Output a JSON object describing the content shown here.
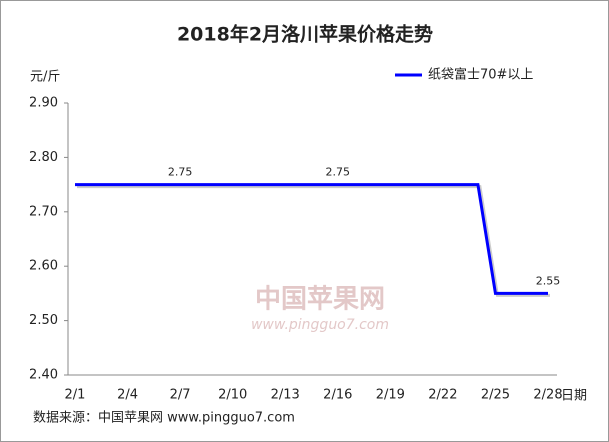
{
  "chart_data": {
    "type": "line",
    "title": "2018年2月洛川苹果价格走势",
    "y_label": "元/斤",
    "x_label": "日期",
    "source": "数据来源：中国苹果网 www.pingguo7.com",
    "watermark": [
      "中国苹果网",
      "www.pingguo7.com"
    ],
    "categories": [
      "2/1",
      null,
      null,
      "2/4",
      null,
      null,
      "2/7",
      null,
      null,
      "2/10",
      null,
      null,
      "2/13",
      null,
      null,
      "2/16",
      null,
      null,
      "2/19",
      null,
      null,
      "2/22",
      null,
      null,
      "2/25",
      null,
      null,
      "2/28"
    ],
    "series": [
      {
        "name": "纸袋富士70#以上",
        "color": "#0000ff",
        "values": [
          2.75,
          2.75,
          2.75,
          2.75,
          2.75,
          2.75,
          2.75,
          2.75,
          2.75,
          2.75,
          2.75,
          2.75,
          2.75,
          2.75,
          2.75,
          2.75,
          2.75,
          2.75,
          2.75,
          2.75,
          2.75,
          2.75,
          2.75,
          2.75,
          2.55,
          2.55,
          2.55,
          2.55
        ],
        "value_labels": [
          null,
          null,
          null,
          null,
          null,
          null,
          "2.75",
          null,
          null,
          null,
          null,
          null,
          null,
          null,
          null,
          "2.75",
          null,
          null,
          null,
          null,
          null,
          null,
          null,
          null,
          null,
          null,
          null,
          "2.55"
        ]
      }
    ],
    "ylim": [
      2.4,
      2.9
    ],
    "yticks": [
      {
        "value": 2.4,
        "label": "2.40"
      },
      {
        "value": 2.5,
        "label": "2.50"
      },
      {
        "value": 2.6,
        "label": "2.60"
      },
      {
        "value": 2.7,
        "label": "2.70"
      },
      {
        "value": 2.8,
        "label": "2.80"
      },
      {
        "value": 2.9,
        "label": "2.90"
      }
    ],
    "grid": false,
    "legend": "top-right"
  }
}
